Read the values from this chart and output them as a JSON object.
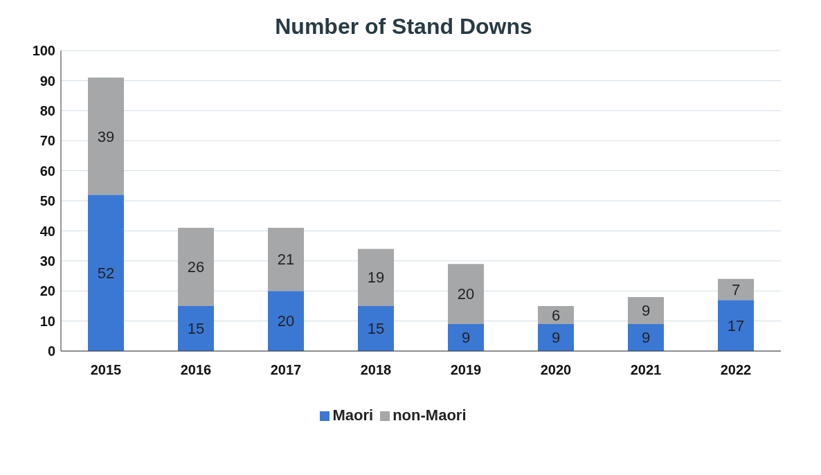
{
  "chart_data": {
    "type": "bar",
    "title": "Number of Stand Downs",
    "categories": [
      "2015",
      "2016",
      "2017",
      "2018",
      "2019",
      "2020",
      "2021",
      "2022"
    ],
    "series": [
      {
        "name": "Maori",
        "color": "#3b78d4",
        "values": [
          52,
          15,
          20,
          15,
          9,
          9,
          9,
          17
        ]
      },
      {
        "name": "non-Maori",
        "color": "#a5a7a8",
        "values": [
          39,
          26,
          21,
          19,
          20,
          6,
          9,
          7
        ]
      }
    ],
    "stacked": true,
    "ylim": [
      0,
      100
    ],
    "yticks": [
      0,
      10,
      20,
      30,
      40,
      50,
      60,
      70,
      80,
      90,
      100
    ],
    "grid": "y",
    "legend": "bottom",
    "data_labels": true
  }
}
